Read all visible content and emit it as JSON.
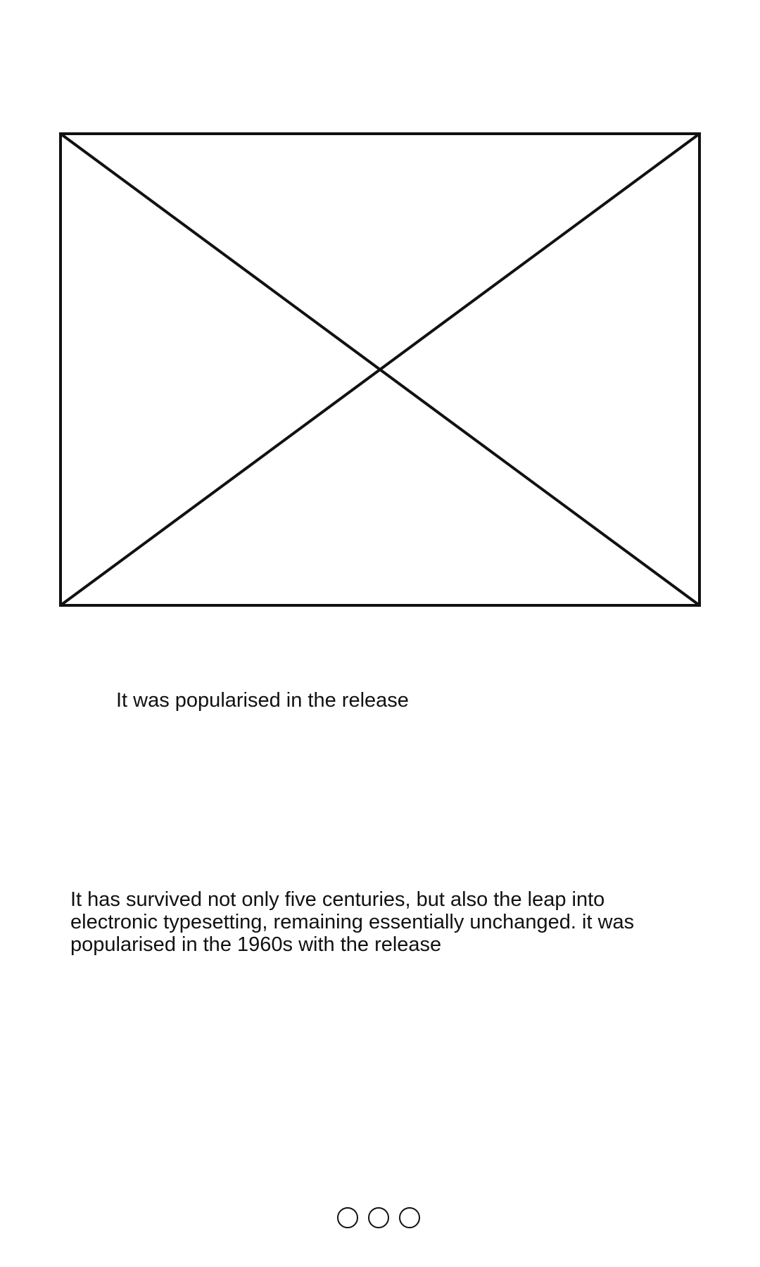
{
  "hero": {
    "icon": "image-placeholder-icon"
  },
  "caption": "It was popularised in the release",
  "body": "It has survived not only five centuries, but also the leap into electronic typesetting, remaining essentially unchanged. it was popularised in the 1960s with the release",
  "pager": {
    "page_count": 3,
    "dot_icon": "circle-outline-icon",
    "dots": [
      {
        "active": false
      },
      {
        "active": false
      },
      {
        "active": false
      }
    ]
  },
  "colors": {
    "background": "#ffffff",
    "stroke": "#111111",
    "text": "#111111"
  }
}
